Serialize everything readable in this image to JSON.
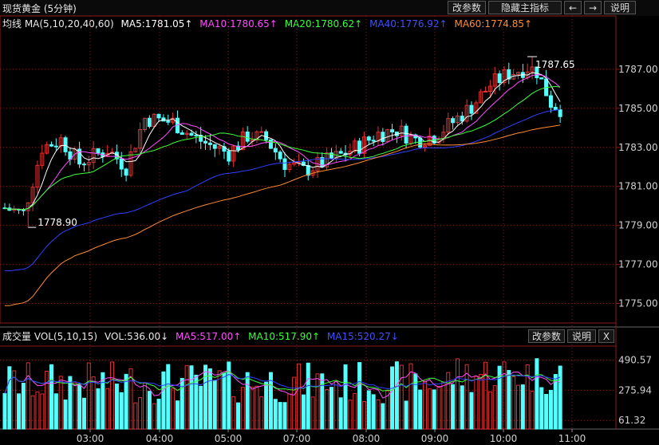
{
  "header": {
    "title": "现货黄金 (5分钟)",
    "btn_params": "改参数",
    "btn_hide": "隐藏主指标",
    "btn_left": "←",
    "btn_right": "→",
    "btn_help": "说明"
  },
  "main_legend": {
    "label": "均线 MA(5,10,20,40,60)",
    "ma5": "MA5:1781.05↑",
    "ma10": "MA10:1780.65↑",
    "ma20": "MA20:1780.62↑",
    "ma40": "MA40:1776.92↑",
    "ma60": "MA60:1774.85↑"
  },
  "vol_legend": {
    "label": "成交量 VOL(5,10,15)",
    "vol": "VOL:536.00↓",
    "ma5": "MA5:517.00↑",
    "ma10": "MA10:517.90↑",
    "ma15": "MA15:520.27↓",
    "btn_params": "改参数",
    "btn_help": "说明",
    "btn_close": "X"
  },
  "colors": {
    "up": "#e03131",
    "down": "#54ffff",
    "ma5": "#ffffff",
    "ma10": "#ff4dff",
    "ma20": "#3cff3c",
    "ma40": "#3040ff",
    "ma60": "#ff8c30",
    "grid": "#8a1a1a",
    "axis_text": "#d0d0d0"
  },
  "chart_data": {
    "type": "candlestick",
    "x_ticks": [
      "03:00",
      "04:00",
      "05:00",
      "07:00",
      "08:00",
      "09:00",
      "10:00",
      "11:00"
    ],
    "price_axis": {
      "ticks": [
        "1787.00",
        "1785.00",
        "1783.00",
        "1781.00",
        "1779.00",
        "1777.00",
        "1775.00"
      ],
      "ylim": [
        1774.0,
        1789.0
      ]
    },
    "annotations": {
      "high_label": "1787.65",
      "high_value": 1787.65,
      "low_label": "1778.90",
      "low_value": 1778.9
    },
    "volume_axis": {
      "ticks": [
        "490.57",
        "275.94",
        "61.32"
      ],
      "ylim": [
        0,
        590
      ]
    }
  }
}
